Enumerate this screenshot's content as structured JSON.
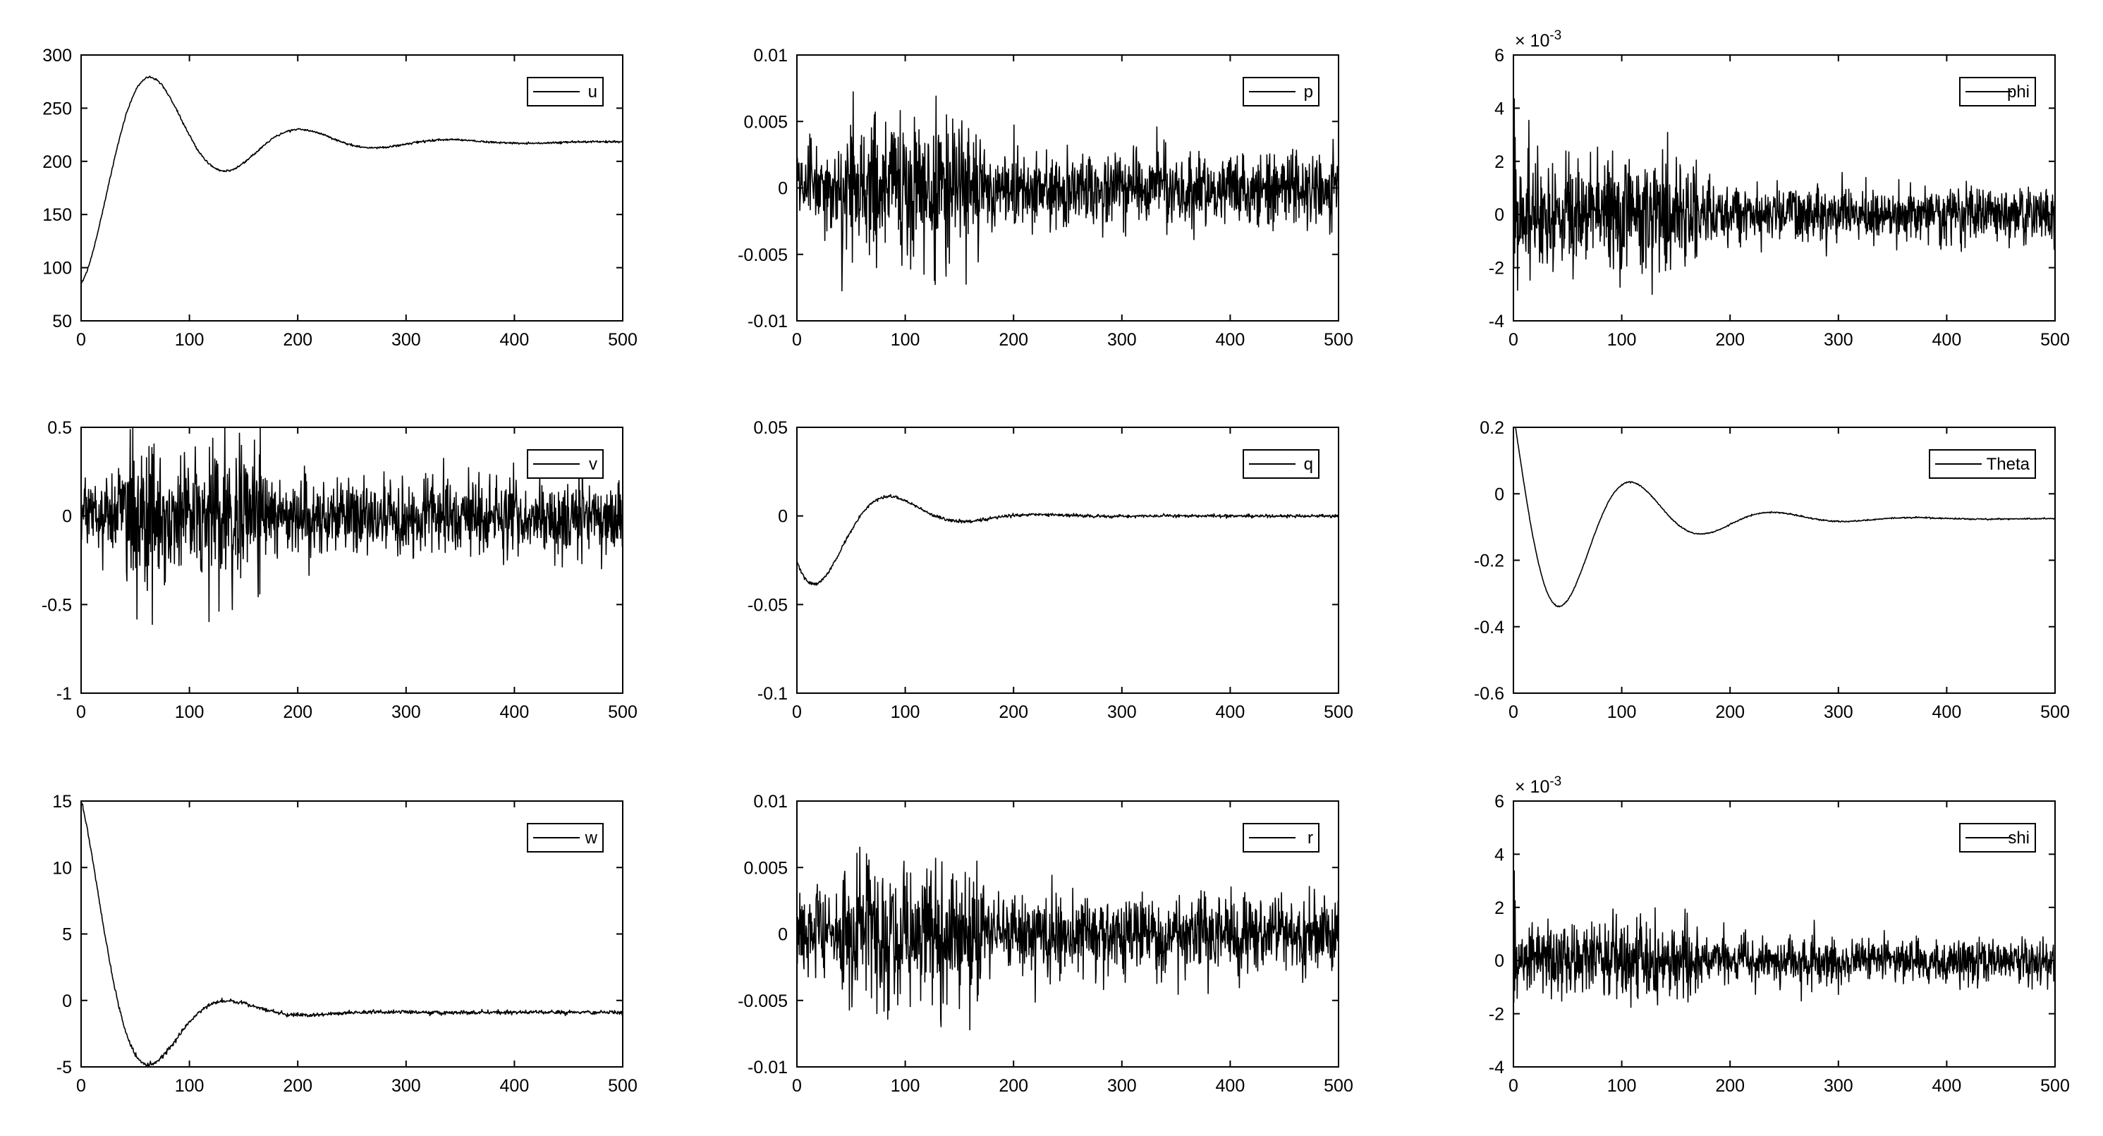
{
  "figure": {
    "line_color": "#000000",
    "background": "#ffffff"
  },
  "chart_data": [
    {
      "type": "line",
      "series": [
        {
          "name": "u",
          "kind": "damped",
          "base": 218,
          "amp": 133,
          "period": 138,
          "tau": 85,
          "phase": 3.14159,
          "noise": 1
        }
      ],
      "xlim": [
        0,
        500
      ],
      "ylim": [
        50,
        300
      ],
      "xticks": [
        "0",
        "100",
        "200",
        "300",
        "400",
        "500"
      ],
      "yticks": [
        "50",
        "100",
        "150",
        "200",
        "250",
        "300"
      ],
      "exponent": "",
      "legend_position": "top-right"
    },
    {
      "type": "line",
      "series": [
        {
          "name": "p",
          "kind": "noise",
          "sigma": 0.0014,
          "burst": [
            40,
            170,
            1.9
          ],
          "seed": 11
        }
      ],
      "xlim": [
        0,
        500
      ],
      "ylim": [
        -0.01,
        0.01
      ],
      "xticks": [
        "0",
        "100",
        "200",
        "300",
        "400",
        "500"
      ],
      "yticks": [
        "-0.01",
        "-0.005",
        "0",
        "0.005",
        "0.01"
      ],
      "exponent": "",
      "legend_position": "top-right"
    },
    {
      "type": "line",
      "series": [
        {
          "name": "phi",
          "kind": "noise",
          "sigma": 0.55,
          "burst": [
            0,
            170,
            2.0
          ],
          "seed": 23,
          "spike": 5.8
        }
      ],
      "xlim": [
        0,
        500
      ],
      "ylim": [
        -4,
        6
      ],
      "xticks": [
        "0",
        "100",
        "200",
        "300",
        "400",
        "500"
      ],
      "yticks": [
        "-4",
        "-2",
        "0",
        "2",
        "4",
        "6"
      ],
      "exponent": "-3",
      "legend_position": "top-right"
    },
    {
      "type": "line",
      "series": [
        {
          "name": "v",
          "kind": "noise",
          "sigma": 0.11,
          "burst": [
            40,
            170,
            2.0
          ],
          "seed": 37
        }
      ],
      "xlim": [
        0,
        500
      ],
      "ylim": [
        -1,
        0.5
      ],
      "xticks": [
        "0",
        "100",
        "200",
        "300",
        "400",
        "500"
      ],
      "yticks": [
        "-1",
        "-0.5",
        "0",
        "0.5"
      ],
      "exponent": "",
      "legend_position": "top-right"
    },
    {
      "type": "line",
      "series": [
        {
          "name": "q",
          "kind": "damped",
          "base": 0,
          "amp": 0.055,
          "period": 138,
          "tau": 55,
          "phase": 2.05,
          "noise": 0.0009
        }
      ],
      "xlim": [
        0,
        500
      ],
      "ylim": [
        -0.1,
        0.05
      ],
      "xticks": [
        "0",
        "100",
        "200",
        "300",
        "400",
        "500"
      ],
      "yticks": [
        "-0.1",
        "-0.05",
        "0",
        "0.05"
      ],
      "exponent": "",
      "legend_position": "top-right"
    },
    {
      "type": "line",
      "series": [
        {
          "name": "Theta",
          "kind": "damped",
          "base": -0.075,
          "amp": 0.48,
          "period": 131,
          "tau": 75,
          "phase": 0.85,
          "noise": 0.002
        }
      ],
      "xlim": [
        0,
        500
      ],
      "ylim": [
        -0.6,
        0.2
      ],
      "xticks": [
        "0",
        "100",
        "200",
        "300",
        "400",
        "500"
      ],
      "yticks": [
        "-0.6",
        "-0.4",
        "-0.2",
        "0",
        "0.2"
      ],
      "exponent": "",
      "legend_position": "top-right"
    },
    {
      "type": "line",
      "series": [
        {
          "name": "w",
          "kind": "damped",
          "base": -0.9,
          "amp": 16,
          "period": 145,
          "tau": 48,
          "phase": 0.0,
          "noise": 0.15
        }
      ],
      "xlim": [
        0,
        500
      ],
      "ylim": [
        -5,
        15
      ],
      "xticks": [
        "0",
        "100",
        "200",
        "300",
        "400",
        "500"
      ],
      "yticks": [
        "-5",
        "0",
        "5",
        "10",
        "15"
      ],
      "exponent": "",
      "legend_position": "top-right"
    },
    {
      "type": "line",
      "series": [
        {
          "name": "r",
          "kind": "noise",
          "sigma": 0.0015,
          "burst": [
            40,
            170,
            1.9
          ],
          "seed": 51
        }
      ],
      "xlim": [
        0,
        500
      ],
      "ylim": [
        -0.01,
        0.01
      ],
      "xticks": [
        "0",
        "100",
        "200",
        "300",
        "400",
        "500"
      ],
      "yticks": [
        "-0.01",
        "-0.005",
        "0",
        "0.005",
        "0.01"
      ],
      "exponent": "",
      "legend_position": "top-right"
    },
    {
      "type": "line",
      "series": [
        {
          "name": "shi",
          "kind": "noise",
          "sigma": 0.42,
          "burst": [
            0,
            170,
            1.7
          ],
          "seed": 67,
          "spike": 4.5
        }
      ],
      "xlim": [
        0,
        500
      ],
      "ylim": [
        -4,
        6
      ],
      "xticks": [
        "0",
        "100",
        "200",
        "300",
        "400",
        "500"
      ],
      "yticks": [
        "-4",
        "-2",
        "0",
        "2",
        "4",
        "6"
      ],
      "exponent": "-3",
      "legend_position": "top-right"
    }
  ]
}
